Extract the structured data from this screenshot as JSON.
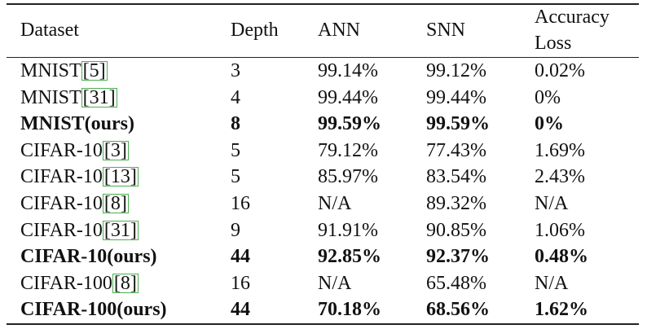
{
  "table": {
    "header": [
      "Dataset",
      "Depth",
      "ANN",
      "SNN",
      "Accuracy Loss"
    ],
    "rows": [
      {
        "dataset": "MNIST",
        "cite": "[5]",
        "depth": "3",
        "ann": "99.14%",
        "snn": "99.12%",
        "loss": "0.02%",
        "bold": false
      },
      {
        "dataset": "MNIST",
        "cite": "[31]",
        "depth": "4",
        "ann": "99.44%",
        "snn": "99.44%",
        "loss": "0%",
        "bold": false
      },
      {
        "dataset": "MNIST(ours)",
        "depth": "8",
        "ann": "99.59%",
        "snn": "99.59%",
        "loss": "0%",
        "bold": true
      },
      {
        "dataset": "CIFAR-10",
        "cite": "[3]",
        "depth": "5",
        "ann": "79.12%",
        "snn": "77.43%",
        "loss": "1.69%",
        "bold": false
      },
      {
        "dataset": "CIFAR-10",
        "cite": "[13]",
        "depth": "5",
        "ann": "85.97%",
        "snn": "83.54%",
        "loss": "2.43%",
        "bold": false
      },
      {
        "dataset": "CIFAR-10",
        "cite": "[8]",
        "depth": "16",
        "ann": "N/A",
        "snn": "89.32%",
        "loss": "N/A",
        "bold": false
      },
      {
        "dataset": "CIFAR-10",
        "cite": "[31]",
        "depth": "9",
        "ann": "91.91%",
        "snn": "90.85%",
        "loss": "1.06%",
        "bold": false
      },
      {
        "dataset": "CIFAR-10(ours)",
        "depth": "44",
        "ann": "92.85%",
        "snn": "92.37%",
        "loss": "0.48%",
        "bold": true
      },
      {
        "dataset": "CIFAR-100",
        "cite": "[8]",
        "depth": "16",
        "ann": "N/A",
        "snn": "65.48%",
        "loss": "N/A",
        "bold": false
      },
      {
        "dataset": "CIFAR-100(ours)",
        "depth": "44",
        "ann": "70.18%",
        "snn": "68.56%",
        "loss": "1.62%",
        "bold": true
      }
    ]
  }
}
